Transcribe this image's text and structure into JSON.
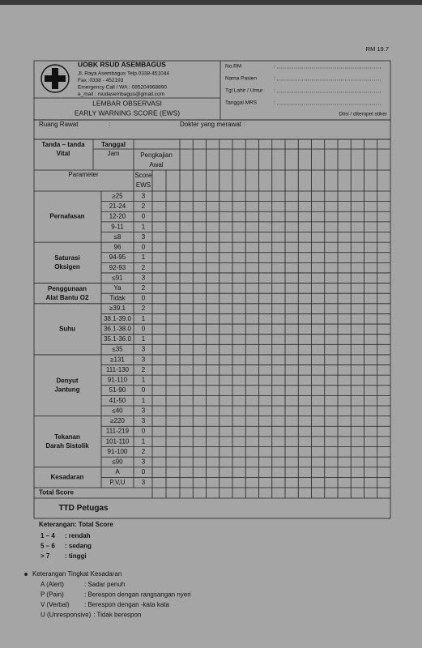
{
  "page": {
    "code": "RM 19.7"
  },
  "header": {
    "hospital": "UOBK RSUD ASEMBAGUS",
    "address": "Jl. Raya Asembagus Telp.0338-451044",
    "fax": "Fax :0338 - 452193",
    "emergency": "Emergency Call / WA : 085204968890",
    "email": "e_mail : rsudasembagus@gmail.com",
    "form_title": [
      "LEMBAR OBSERVASI",
      "EARLY WARNING SCORE (EWS)"
    ],
    "separator": ":",
    "patient_fields": [
      "No.RM",
      "Nama Pasien",
      "Tgl Lahir / Umur",
      "Tanggal MRS"
    ],
    "sticker_note": "Diisi / ditempel stiker"
  },
  "ward": {
    "room": "Ruang  Rawat",
    "separator": ":",
    "doctor": "Dokter yang merawat :"
  },
  "table": {
    "headers": {
      "vital": [
        "Tanda – tanda",
        "Vital"
      ],
      "date": [
        "Tanggal",
        "Jam"
      ],
      "initial": [
        "Pengkajian",
        "Awal"
      ],
      "parameter": "Parameter",
      "score": [
        "Score",
        "EWS"
      ]
    },
    "groups": [
      {
        "parameter": [
          "Pernafasan"
        ],
        "rows": [
          {
            "range": "≥25",
            "score": 3
          },
          {
            "range": "21-24",
            "score": 2
          },
          {
            "range": "12-20",
            "score": 0
          },
          {
            "range": "9-11",
            "score": 1
          },
          {
            "range": "≤8",
            "score": 3
          }
        ]
      },
      {
        "parameter": [
          "Saturasi",
          "Oksigen"
        ],
        "rows": [
          {
            "range": "96",
            "score": 0
          },
          {
            "range": "94-95",
            "score": 1
          },
          {
            "range": "92-93",
            "score": 2
          },
          {
            "range": "≤91",
            "score": 3
          }
        ]
      },
      {
        "parameter": [
          "Penggunaan",
          "Alat Bantu O2"
        ],
        "rows": [
          {
            "range": "Ya",
            "score": 2
          },
          {
            "range": "Tidak",
            "score": 0
          }
        ]
      },
      {
        "parameter": [
          "Suhu"
        ],
        "rows": [
          {
            "range": "≥39.1",
            "score": 2
          },
          {
            "range": "38.1-39.0",
            "score": 1
          },
          {
            "range": "36.1-38.0",
            "score": 0
          },
          {
            "range": "35.1-36.0",
            "score": 1
          },
          {
            "range": "≤35",
            "score": 3
          }
        ]
      },
      {
        "parameter": [
          "Denyut",
          "Jantung"
        ],
        "rows": [
          {
            "range": "≥131",
            "score": 3
          },
          {
            "range": "111-130",
            "score": 2
          },
          {
            "range": "91-110",
            "score": 1
          },
          {
            "range": "51-90",
            "score": 0
          },
          {
            "range": "41-50",
            "score": 1
          },
          {
            "range": "≤40",
            "score": 3
          }
        ]
      },
      {
        "parameter": [
          "Tekanan",
          "Darah Sistolik"
        ],
        "rows": [
          {
            "range": "≥220",
            "score": 3
          },
          {
            "range": "111-219",
            "score": 0
          },
          {
            "range": "101-110",
            "score": 1
          },
          {
            "range": "91-100",
            "score": 2
          },
          {
            "range": "≤90",
            "score": 3
          }
        ]
      },
      {
        "parameter": [
          "Kesadaran"
        ],
        "rows": [
          {
            "range": "A",
            "score": 0
          },
          {
            "range": "P,V,U",
            "score": 3
          }
        ]
      }
    ],
    "total_label": "Total Score",
    "signature_label": "TTD Petugas"
  },
  "legend": {
    "title": "Keterangan: Total Score",
    "items": [
      {
        "range": "1 – 4",
        "label": ": rendah"
      },
      {
        "range": "5 – 6",
        "label": ": sedang"
      },
      {
        "range": "> 7",
        "label": ": tinggi"
      }
    ]
  },
  "consciousness": {
    "title": "Keterangan Tingkat Kesadaran",
    "items": [
      {
        "term": "A (Alert)",
        "desc": ": Sadar penuh"
      },
      {
        "term": "P (Pain)",
        "desc": ": Berespon dengan rangsangan nyeri"
      },
      {
        "term": "V (Verbal)",
        "desc": ": Berespon dengan -kata kata"
      },
      {
        "term": "U (Unresponsive)",
        "desc": ": Tidak berespon"
      }
    ]
  }
}
